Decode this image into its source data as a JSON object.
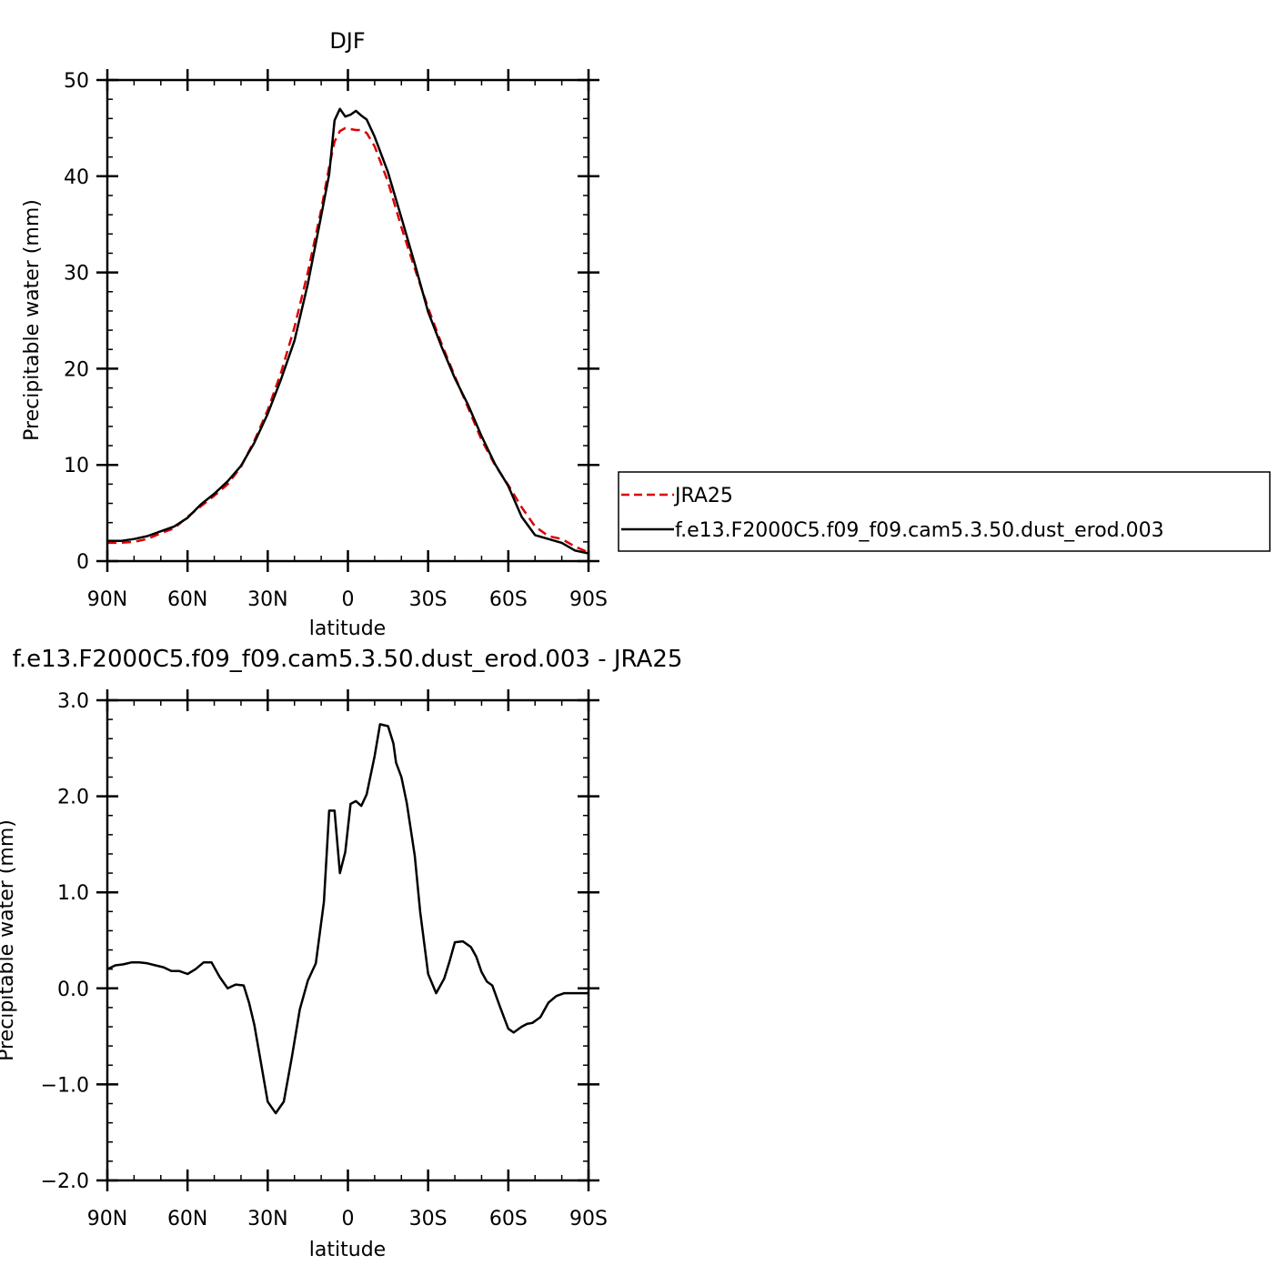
{
  "chart_data": [
    {
      "type": "line",
      "title": "DJF",
      "xlabel": "latitude",
      "ylabel": "Precipitable water (mm)",
      "xlim": [
        -90,
        90
      ],
      "ylim": [
        0,
        50
      ],
      "x_ticks": [
        {
          "value": -90,
          "label": "90N"
        },
        {
          "value": -60,
          "label": "60N"
        },
        {
          "value": -30,
          "label": "30N"
        },
        {
          "value": 0,
          "label": "0"
        },
        {
          "value": 30,
          "label": "30S"
        },
        {
          "value": 60,
          "label": "60S"
        },
        {
          "value": 90,
          "label": "90S"
        }
      ],
      "y_ticks": [
        {
          "value": 0,
          "label": "0"
        },
        {
          "value": 10,
          "label": "10"
        },
        {
          "value": 20,
          "label": "20"
        },
        {
          "value": 30,
          "label": "30"
        },
        {
          "value": 40,
          "label": "40"
        },
        {
          "value": 50,
          "label": "50"
        }
      ],
      "legend": {
        "placement": "outside-right"
      },
      "series": [
        {
          "name": "JRA25",
          "color": "#dd0000",
          "dash": "dashed",
          "x": [
            -90,
            -85,
            -80,
            -75,
            -70,
            -65,
            -60,
            -55,
            -50,
            -45,
            -40,
            -35,
            -30,
            -25,
            -20,
            -15,
            -10,
            -7,
            -5,
            -3,
            -1,
            1,
            3,
            5,
            7,
            10,
            15,
            20,
            25,
            30,
            35,
            40,
            45,
            50,
            55,
            60,
            65,
            70,
            75,
            80,
            85,
            90
          ],
          "values": [
            1.9,
            1.9,
            2.0,
            2.3,
            2.9,
            3.4,
            4.6,
            5.7,
            6.8,
            8.0,
            9.8,
            12.5,
            15.7,
            19.6,
            24.3,
            30.0,
            36.5,
            41.0,
            43.6,
            44.7,
            45.0,
            44.9,
            44.8,
            44.8,
            44.5,
            43.1,
            39.4,
            34.7,
            30.4,
            26.3,
            22.6,
            19.2,
            15.9,
            12.6,
            10.0,
            7.9,
            5.6,
            3.6,
            2.6,
            2.3,
            1.5,
            0.9
          ]
        },
        {
          "name": "f.e13.F2000C5.f09_f09.cam5.3.50.dust_erod.003",
          "color": "#000000",
          "dash": "solid",
          "x": [
            -90,
            -85,
            -80,
            -75,
            -70,
            -65,
            -60,
            -55,
            -50,
            -45,
            -40,
            -35,
            -30,
            -25,
            -20,
            -15,
            -10,
            -7,
            -5,
            -3,
            -1,
            1,
            3,
            5,
            7,
            10,
            15,
            20,
            25,
            30,
            35,
            40,
            45,
            50,
            55,
            60,
            65,
            70,
            75,
            80,
            85,
            90
          ],
          "values": [
            2.1,
            2.1,
            2.3,
            2.6,
            3.1,
            3.6,
            4.5,
            5.9,
            7.0,
            8.3,
            9.9,
            12.3,
            15.3,
            18.9,
            22.9,
            28.8,
            35.9,
            40.2,
            45.8,
            47.0,
            46.2,
            46.4,
            46.8,
            46.3,
            45.9,
            44.1,
            40.4,
            35.7,
            30.9,
            25.9,
            22.3,
            19.0,
            16.2,
            13.0,
            10.1,
            7.8,
            4.6,
            2.7,
            2.3,
            1.9,
            1.1,
            0.8
          ]
        }
      ]
    },
    {
      "type": "line",
      "title": "f.e13.F2000C5.f09_f09.cam5.3.50.dust_erod.003 - JRA25",
      "xlabel": "latitude",
      "ylabel": "Precipitable water (mm)",
      "xlim": [
        -90,
        90
      ],
      "ylim": [
        -2.0,
        3.0
      ],
      "x_ticks": [
        {
          "value": -90,
          "label": "90N"
        },
        {
          "value": -60,
          "label": "60N"
        },
        {
          "value": -30,
          "label": "30N"
        },
        {
          "value": 0,
          "label": "0"
        },
        {
          "value": 30,
          "label": "30S"
        },
        {
          "value": 60,
          "label": "60S"
        },
        {
          "value": 90,
          "label": "90S"
        }
      ],
      "y_ticks": [
        {
          "value": -2.0,
          "label": "−2.0"
        },
        {
          "value": -1.0,
          "label": "−1.0"
        },
        {
          "value": 0.0,
          "label": "0.0"
        },
        {
          "value": 1.0,
          "label": "1.0"
        },
        {
          "value": 2.0,
          "label": "2.0"
        },
        {
          "value": 3.0,
          "label": "3.0"
        }
      ],
      "series": [
        {
          "color": "#000000",
          "dash": "solid",
          "x": [
            -90,
            -87,
            -84,
            -81,
            -78,
            -75,
            -72,
            -69,
            -66,
            -63,
            -60,
            -57,
            -54,
            -51,
            -48,
            -45,
            -42,
            -39,
            -37,
            -35,
            -33,
            -30,
            -27,
            -24,
            -21,
            -18,
            -15,
            -12,
            -9,
            -7,
            -5,
            -3,
            -1,
            1,
            3,
            5,
            7,
            10,
            12,
            15,
            17,
            18,
            20,
            22,
            25,
            27,
            30,
            33,
            36,
            38,
            40,
            43,
            46,
            48,
            50,
            52,
            54,
            57,
            60,
            62,
            65,
            67,
            69,
            72,
            75,
            78,
            81,
            84,
            87,
            90
          ],
          "values": [
            0.2,
            0.24,
            0.25,
            0.27,
            0.27,
            0.26,
            0.24,
            0.22,
            0.18,
            0.18,
            0.15,
            0.2,
            0.27,
            0.27,
            0.12,
            0.0,
            0.04,
            0.03,
            -0.15,
            -0.38,
            -0.7,
            -1.18,
            -1.3,
            -1.18,
            -0.72,
            -0.22,
            0.08,
            0.26,
            0.9,
            1.85,
            1.85,
            1.2,
            1.42,
            1.92,
            1.95,
            1.9,
            2.02,
            2.42,
            2.75,
            2.73,
            2.55,
            2.35,
            2.2,
            1.93,
            1.38,
            0.8,
            0.15,
            -0.05,
            0.1,
            0.28,
            0.48,
            0.49,
            0.43,
            0.33,
            0.17,
            0.07,
            0.03,
            -0.2,
            -0.42,
            -0.46,
            -0.4,
            -0.37,
            -0.36,
            -0.3,
            -0.15,
            -0.08,
            -0.05,
            -0.05,
            -0.05,
            -0.05
          ]
        }
      ]
    }
  ]
}
